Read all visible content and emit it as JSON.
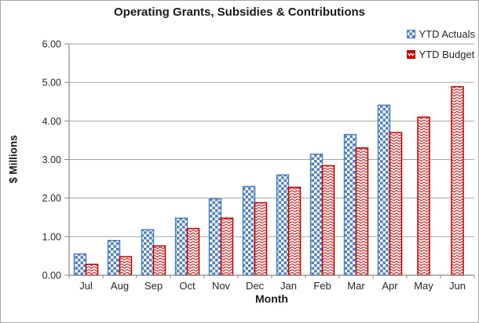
{
  "chart_data": {
    "type": "bar",
    "title": "Operating Grants, Subsidies & Contributions",
    "xlabel": "Month",
    "ylabel": "$ Millions",
    "categories": [
      "Jul",
      "Aug",
      "Sep",
      "Oct",
      "Nov",
      "Dec",
      "Jan",
      "Feb",
      "Mar",
      "Apr",
      "May",
      "Jun"
    ],
    "series": [
      {
        "name": "YTD Actuals",
        "color": "#4F81BD",
        "pattern": "checker",
        "values": [
          0.55,
          0.9,
          1.18,
          1.48,
          1.98,
          2.3,
          2.6,
          3.14,
          3.65,
          4.41,
          null,
          null
        ]
      },
      {
        "name": "YTD Budget",
        "color": "#C00000",
        "pattern": "zigzag",
        "values": [
          0.28,
          0.48,
          0.76,
          1.21,
          1.48,
          1.88,
          2.28,
          2.84,
          3.3,
          3.7,
          4.1,
          4.89
        ]
      }
    ],
    "ylim": [
      0,
      6
    ],
    "y_tick_step": 1,
    "y_ticks": [
      "0.00",
      "1.00",
      "2.00",
      "3.00",
      "4.00",
      "5.00",
      "6.00"
    ],
    "grid": "horizontal",
    "legend_position": "top-right"
  },
  "colors": {
    "gridline": "#A6A6A6",
    "axis": "#898989",
    "tick_text": "#262626",
    "actuals_fill": "#4F81BD",
    "budget_fill": "#C00000",
    "plot_bg": "#FFFFFF"
  }
}
